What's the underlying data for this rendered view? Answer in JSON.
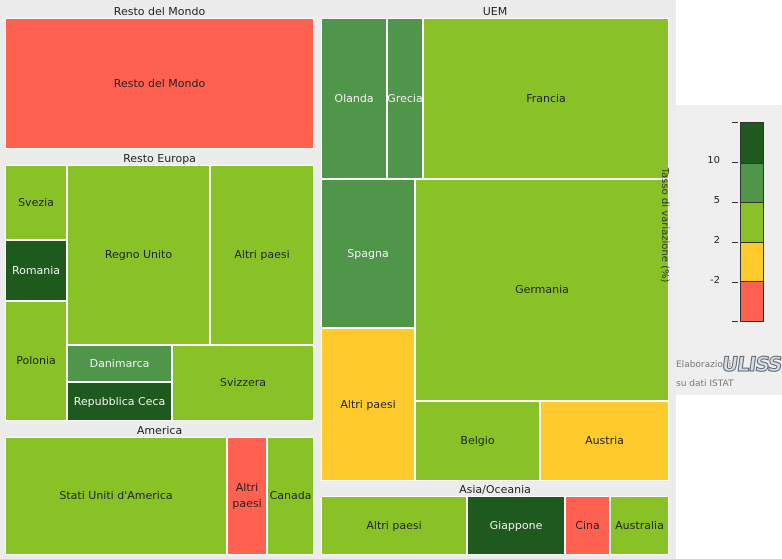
{
  "colors": {
    "dark_green": "#1e5a1e",
    "mid_green": "#4f964a",
    "light_green": "#89c226",
    "yellow": "#ffca2b",
    "red": "#ff6150"
  },
  "chart_data": {
    "type": "treemap",
    "legend": {
      "title": "Tasso di variazione (%)",
      "ticks": [
        "10",
        "5",
        "2",
        "-2"
      ],
      "bins": [
        {
          "label": "> 10",
          "color": "#1e5a1e"
        },
        {
          "label": "5 – 10",
          "color": "#4f964a"
        },
        {
          "label": "2 – 5",
          "color": "#89c226"
        },
        {
          "label": "-2 – 2",
          "color": "#ffca2b"
        },
        {
          "label": "< -2",
          "color": "#ff6150"
        }
      ]
    },
    "groups": [
      {
        "name": "Resto del Mondo",
        "items": [
          {
            "label": "Resto del Mondo",
            "class": "< -2"
          }
        ]
      },
      {
        "name": "Resto Europa",
        "items": [
          {
            "label": "Svezia",
            "class": "2 – 5"
          },
          {
            "label": "Romania",
            "class": "> 10"
          },
          {
            "label": "Polonia",
            "class": "2 – 5"
          },
          {
            "label": "Regno Unito",
            "class": "2 – 5"
          },
          {
            "label": "Altri paesi",
            "class": "2 – 5"
          },
          {
            "label": "Danimarca",
            "class": "5 – 10"
          },
          {
            "label": "Repubblica Ceca",
            "class": "> 10"
          },
          {
            "label": "Svizzera",
            "class": "2 – 5"
          }
        ]
      },
      {
        "name": "America",
        "items": [
          {
            "label": "Stati Uniti d'America",
            "class": "2 – 5"
          },
          {
            "label": "Altri paesi",
            "class": "< -2"
          },
          {
            "label": "Canada",
            "class": "2 – 5"
          }
        ]
      },
      {
        "name": "UEM",
        "items": [
          {
            "label": "Olanda",
            "class": "5 – 10"
          },
          {
            "label": "Grecia",
            "class": "5 – 10"
          },
          {
            "label": "Francia",
            "class": "2 – 5"
          },
          {
            "label": "Spagna",
            "class": "5 – 10"
          },
          {
            "label": "Germania",
            "class": "2 – 5"
          },
          {
            "label": "Altri paesi",
            "class": "-2 – 2"
          },
          {
            "label": "Belgio",
            "class": "2 – 5"
          },
          {
            "label": "Austria",
            "class": "-2 – 2"
          }
        ]
      },
      {
        "name": "Asia/Oceania",
        "items": [
          {
            "label": "Altri paesi",
            "class": "2 – 5"
          },
          {
            "label": "Giappone",
            "class": "> 10"
          },
          {
            "label": "Cina",
            "class": "< -2"
          },
          {
            "label": "Australia",
            "class": "2 – 5"
          }
        ]
      }
    ]
  },
  "credit": {
    "elaborazioni": "Elaborazioni",
    "logo": "ULISSE",
    "source": "su dati ISTAT"
  }
}
